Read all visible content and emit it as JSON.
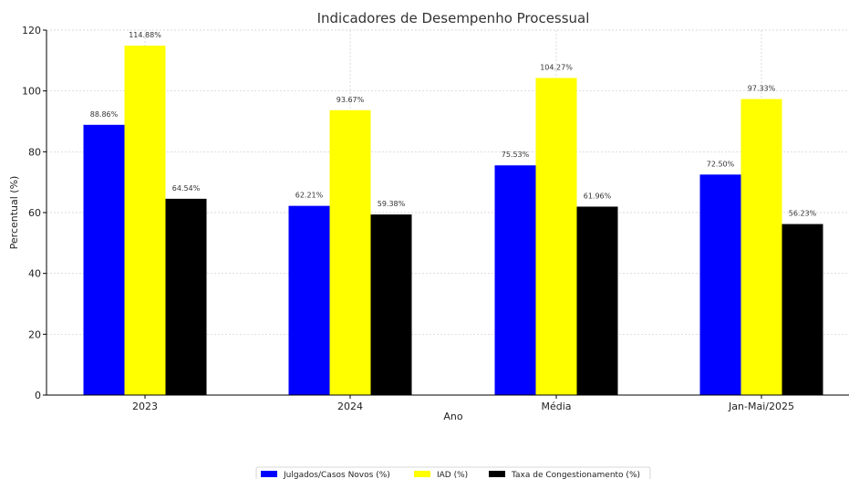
{
  "chart_data": {
    "type": "bar",
    "title": "Indicadores de Desempenho Processual",
    "xlabel": "Ano",
    "ylabel": "Percentual (%)",
    "ylim": [
      0,
      120
    ],
    "yticks": [
      0,
      20,
      40,
      60,
      80,
      100,
      120
    ],
    "grid": true,
    "legend_position": "bottom-center",
    "categories": [
      "2023",
      "2024",
      "Média",
      "Jan-Mai/2025"
    ],
    "series": [
      {
        "name": "Julgados/Casos Novos (%)",
        "color": "#0000ff",
        "values": [
          88.86,
          62.21,
          75.53,
          72.5
        ],
        "labels": [
          "88.86%",
          "62.21%",
          "75.53%",
          "72.50%"
        ]
      },
      {
        "name": "IAD (%)",
        "color": "#ffff00",
        "values": [
          114.88,
          93.67,
          104.27,
          97.33
        ],
        "labels": [
          "114.88%",
          "93.67%",
          "104.27%",
          "97.33%"
        ]
      },
      {
        "name": "Taxa de Congestionamento (%)",
        "color": "#000000",
        "values": [
          64.54,
          59.38,
          61.96,
          56.23
        ],
        "labels": [
          "64.54%",
          "59.38%",
          "61.96%",
          "56.23%"
        ]
      }
    ]
  }
}
